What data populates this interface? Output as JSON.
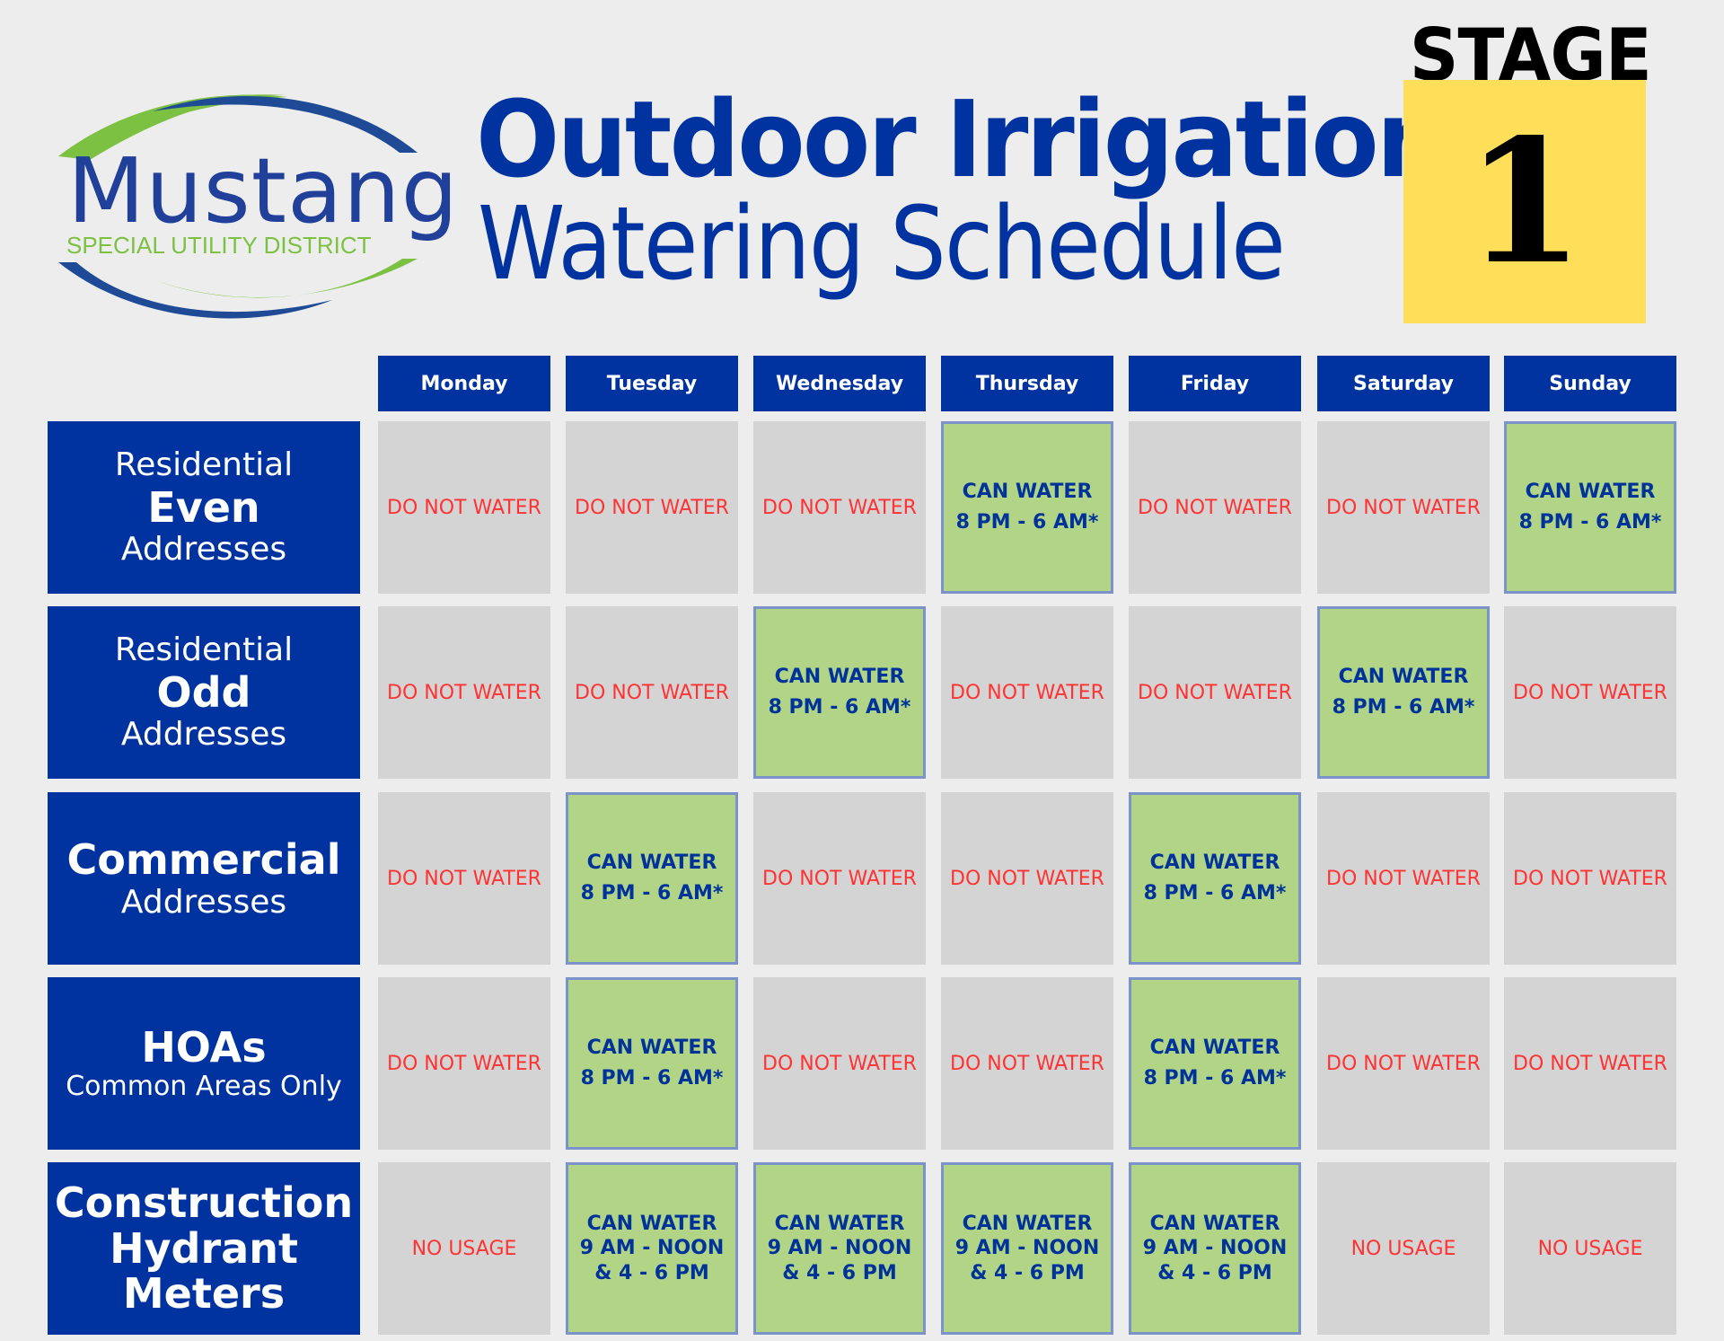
{
  "logo": {
    "name": "Mustang",
    "subtitle": "SPECIAL UTILITY DISTRICT"
  },
  "title": {
    "line1": "Outdoor Irrigation",
    "line2": "Watering Schedule"
  },
  "stage": {
    "label": "STAGE",
    "number": "1"
  },
  "colors": {
    "background": "#ededed",
    "navy": "#0033a0",
    "allowed_fill": "#b2d487",
    "allowed_border": "#7b93c8",
    "blocked_fill": "#d4d4d4",
    "blocked_text": "#ff3333",
    "stage_yellow": "#ffde59",
    "logo_green": "#7dc143"
  },
  "days": [
    "Monday",
    "Tuesday",
    "Wednesday",
    "Thursday",
    "Friday",
    "Saturday",
    "Sunday"
  ],
  "rows": [
    {
      "label": {
        "l1": "Residential",
        "l2": "Even",
        "l3": "Addresses"
      },
      "cells": [
        {
          "status": "no",
          "lines": [
            "DO NOT WATER"
          ]
        },
        {
          "status": "no",
          "lines": [
            "DO NOT WATER"
          ]
        },
        {
          "status": "no",
          "lines": [
            "DO NOT WATER"
          ]
        },
        {
          "status": "yes",
          "lines": [
            "CAN WATER",
            "8 PM - 6 AM*"
          ]
        },
        {
          "status": "no",
          "lines": [
            "DO NOT WATER"
          ]
        },
        {
          "status": "no",
          "lines": [
            "DO NOT WATER"
          ]
        },
        {
          "status": "yes",
          "lines": [
            "CAN WATER",
            "8 PM - 6 AM*"
          ]
        }
      ]
    },
    {
      "label": {
        "l1": "Residential",
        "l2": "Odd",
        "l3": "Addresses"
      },
      "cells": [
        {
          "status": "no",
          "lines": [
            "DO NOT WATER"
          ]
        },
        {
          "status": "no",
          "lines": [
            "DO NOT WATER"
          ]
        },
        {
          "status": "yes",
          "lines": [
            "CAN WATER",
            "8 PM - 6 AM*"
          ]
        },
        {
          "status": "no",
          "lines": [
            "DO NOT WATER"
          ]
        },
        {
          "status": "no",
          "lines": [
            "DO NOT WATER"
          ]
        },
        {
          "status": "yes",
          "lines": [
            "CAN WATER",
            "8 PM - 6 AM*"
          ]
        },
        {
          "status": "no",
          "lines": [
            "DO NOT WATER"
          ]
        }
      ]
    },
    {
      "label": {
        "l1": "Commercial",
        "l2": "Addresses"
      },
      "cells": [
        {
          "status": "no",
          "lines": [
            "DO NOT WATER"
          ]
        },
        {
          "status": "yes",
          "lines": [
            "CAN WATER",
            "8 PM - 6 AM*"
          ]
        },
        {
          "status": "no",
          "lines": [
            "DO NOT WATER"
          ]
        },
        {
          "status": "no",
          "lines": [
            "DO NOT WATER"
          ]
        },
        {
          "status": "yes",
          "lines": [
            "CAN WATER",
            "8 PM - 6 AM*"
          ]
        },
        {
          "status": "no",
          "lines": [
            "DO NOT WATER"
          ]
        },
        {
          "status": "no",
          "lines": [
            "DO NOT WATER"
          ]
        }
      ]
    },
    {
      "label": {
        "l1": "HOAs",
        "l2": "Common Areas Only"
      },
      "cells": [
        {
          "status": "no",
          "lines": [
            "DO NOT WATER"
          ]
        },
        {
          "status": "yes",
          "lines": [
            "CAN WATER",
            "8 PM - 6 AM*"
          ]
        },
        {
          "status": "no",
          "lines": [
            "DO NOT WATER"
          ]
        },
        {
          "status": "no",
          "lines": [
            "DO NOT WATER"
          ]
        },
        {
          "status": "yes",
          "lines": [
            "CAN WATER",
            "8 PM - 6 AM*"
          ]
        },
        {
          "status": "no",
          "lines": [
            "DO NOT WATER"
          ]
        },
        {
          "status": "no",
          "lines": [
            "DO NOT WATER"
          ]
        }
      ]
    },
    {
      "label": {
        "l1": "Construction",
        "l2": "Hydrant",
        "l3": "Meters"
      },
      "cells": [
        {
          "status": "no",
          "lines": [
            "NO USAGE"
          ]
        },
        {
          "status": "yes",
          "lines": [
            "CAN WATER",
            "9 AM - NOON",
            "& 4 - 6 PM"
          ]
        },
        {
          "status": "yes",
          "lines": [
            "CAN WATER",
            "9 AM - NOON",
            "& 4 - 6 PM"
          ]
        },
        {
          "status": "yes",
          "lines": [
            "CAN WATER",
            "9 AM - NOON",
            "& 4 - 6 PM"
          ]
        },
        {
          "status": "yes",
          "lines": [
            "CAN WATER",
            "9 AM - NOON",
            "& 4 - 6 PM"
          ]
        },
        {
          "status": "no",
          "lines": [
            "NO USAGE"
          ]
        },
        {
          "status": "no",
          "lines": [
            "NO USAGE"
          ]
        }
      ]
    }
  ]
}
